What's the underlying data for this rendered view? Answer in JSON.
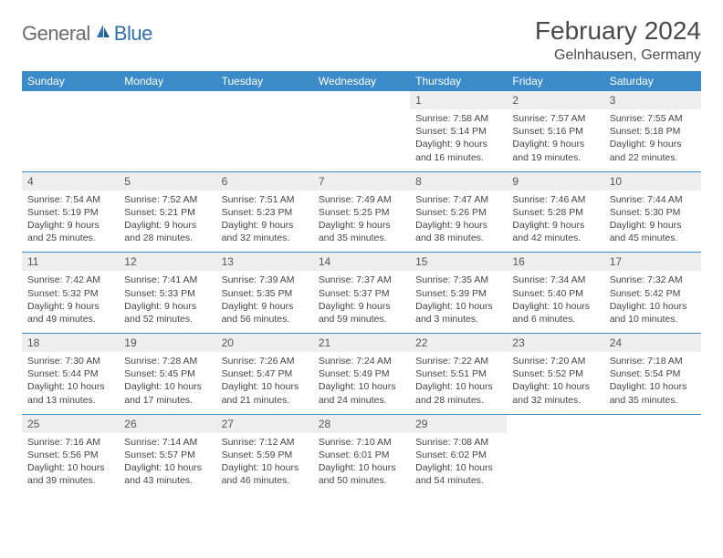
{
  "brand": {
    "general": "General",
    "blue": "Blue"
  },
  "title": "February 2024",
  "location": "Gelnhausen, Germany",
  "colors": {
    "header_bg": "#3b8bc8",
    "header_text": "#ffffff",
    "daynum_bg": "#eeeeee",
    "daynum_text": "#555555",
    "body_text": "#444444",
    "rule": "#3b8bc8",
    "logo_gray": "#6b6b6b",
    "logo_blue": "#2f6fad",
    "title_text": "#4a4a4a"
  },
  "weekdays": [
    "Sunday",
    "Monday",
    "Tuesday",
    "Wednesday",
    "Thursday",
    "Friday",
    "Saturday"
  ],
  "weeks": [
    [
      {
        "empty": true
      },
      {
        "empty": true
      },
      {
        "empty": true
      },
      {
        "empty": true
      },
      {
        "day": "1",
        "sunrise": "Sunrise: 7:58 AM",
        "sunset": "Sunset: 5:14 PM",
        "daylight1": "Daylight: 9 hours",
        "daylight2": "and 16 minutes."
      },
      {
        "day": "2",
        "sunrise": "Sunrise: 7:57 AM",
        "sunset": "Sunset: 5:16 PM",
        "daylight1": "Daylight: 9 hours",
        "daylight2": "and 19 minutes."
      },
      {
        "day": "3",
        "sunrise": "Sunrise: 7:55 AM",
        "sunset": "Sunset: 5:18 PM",
        "daylight1": "Daylight: 9 hours",
        "daylight2": "and 22 minutes."
      }
    ],
    [
      {
        "day": "4",
        "sunrise": "Sunrise: 7:54 AM",
        "sunset": "Sunset: 5:19 PM",
        "daylight1": "Daylight: 9 hours",
        "daylight2": "and 25 minutes."
      },
      {
        "day": "5",
        "sunrise": "Sunrise: 7:52 AM",
        "sunset": "Sunset: 5:21 PM",
        "daylight1": "Daylight: 9 hours",
        "daylight2": "and 28 minutes."
      },
      {
        "day": "6",
        "sunrise": "Sunrise: 7:51 AM",
        "sunset": "Sunset: 5:23 PM",
        "daylight1": "Daylight: 9 hours",
        "daylight2": "and 32 minutes."
      },
      {
        "day": "7",
        "sunrise": "Sunrise: 7:49 AM",
        "sunset": "Sunset: 5:25 PM",
        "daylight1": "Daylight: 9 hours",
        "daylight2": "and 35 minutes."
      },
      {
        "day": "8",
        "sunrise": "Sunrise: 7:47 AM",
        "sunset": "Sunset: 5:26 PM",
        "daylight1": "Daylight: 9 hours",
        "daylight2": "and 38 minutes."
      },
      {
        "day": "9",
        "sunrise": "Sunrise: 7:46 AM",
        "sunset": "Sunset: 5:28 PM",
        "daylight1": "Daylight: 9 hours",
        "daylight2": "and 42 minutes."
      },
      {
        "day": "10",
        "sunrise": "Sunrise: 7:44 AM",
        "sunset": "Sunset: 5:30 PM",
        "daylight1": "Daylight: 9 hours",
        "daylight2": "and 45 minutes."
      }
    ],
    [
      {
        "day": "11",
        "sunrise": "Sunrise: 7:42 AM",
        "sunset": "Sunset: 5:32 PM",
        "daylight1": "Daylight: 9 hours",
        "daylight2": "and 49 minutes."
      },
      {
        "day": "12",
        "sunrise": "Sunrise: 7:41 AM",
        "sunset": "Sunset: 5:33 PM",
        "daylight1": "Daylight: 9 hours",
        "daylight2": "and 52 minutes."
      },
      {
        "day": "13",
        "sunrise": "Sunrise: 7:39 AM",
        "sunset": "Sunset: 5:35 PM",
        "daylight1": "Daylight: 9 hours",
        "daylight2": "and 56 minutes."
      },
      {
        "day": "14",
        "sunrise": "Sunrise: 7:37 AM",
        "sunset": "Sunset: 5:37 PM",
        "daylight1": "Daylight: 9 hours",
        "daylight2": "and 59 minutes."
      },
      {
        "day": "15",
        "sunrise": "Sunrise: 7:35 AM",
        "sunset": "Sunset: 5:39 PM",
        "daylight1": "Daylight: 10 hours",
        "daylight2": "and 3 minutes."
      },
      {
        "day": "16",
        "sunrise": "Sunrise: 7:34 AM",
        "sunset": "Sunset: 5:40 PM",
        "daylight1": "Daylight: 10 hours",
        "daylight2": "and 6 minutes."
      },
      {
        "day": "17",
        "sunrise": "Sunrise: 7:32 AM",
        "sunset": "Sunset: 5:42 PM",
        "daylight1": "Daylight: 10 hours",
        "daylight2": "and 10 minutes."
      }
    ],
    [
      {
        "day": "18",
        "sunrise": "Sunrise: 7:30 AM",
        "sunset": "Sunset: 5:44 PM",
        "daylight1": "Daylight: 10 hours",
        "daylight2": "and 13 minutes."
      },
      {
        "day": "19",
        "sunrise": "Sunrise: 7:28 AM",
        "sunset": "Sunset: 5:45 PM",
        "daylight1": "Daylight: 10 hours",
        "daylight2": "and 17 minutes."
      },
      {
        "day": "20",
        "sunrise": "Sunrise: 7:26 AM",
        "sunset": "Sunset: 5:47 PM",
        "daylight1": "Daylight: 10 hours",
        "daylight2": "and 21 minutes."
      },
      {
        "day": "21",
        "sunrise": "Sunrise: 7:24 AM",
        "sunset": "Sunset: 5:49 PM",
        "daylight1": "Daylight: 10 hours",
        "daylight2": "and 24 minutes."
      },
      {
        "day": "22",
        "sunrise": "Sunrise: 7:22 AM",
        "sunset": "Sunset: 5:51 PM",
        "daylight1": "Daylight: 10 hours",
        "daylight2": "and 28 minutes."
      },
      {
        "day": "23",
        "sunrise": "Sunrise: 7:20 AM",
        "sunset": "Sunset: 5:52 PM",
        "daylight1": "Daylight: 10 hours",
        "daylight2": "and 32 minutes."
      },
      {
        "day": "24",
        "sunrise": "Sunrise: 7:18 AM",
        "sunset": "Sunset: 5:54 PM",
        "daylight1": "Daylight: 10 hours",
        "daylight2": "and 35 minutes."
      }
    ],
    [
      {
        "day": "25",
        "sunrise": "Sunrise: 7:16 AM",
        "sunset": "Sunset: 5:56 PM",
        "daylight1": "Daylight: 10 hours",
        "daylight2": "and 39 minutes."
      },
      {
        "day": "26",
        "sunrise": "Sunrise: 7:14 AM",
        "sunset": "Sunset: 5:57 PM",
        "daylight1": "Daylight: 10 hours",
        "daylight2": "and 43 minutes."
      },
      {
        "day": "27",
        "sunrise": "Sunrise: 7:12 AM",
        "sunset": "Sunset: 5:59 PM",
        "daylight1": "Daylight: 10 hours",
        "daylight2": "and 46 minutes."
      },
      {
        "day": "28",
        "sunrise": "Sunrise: 7:10 AM",
        "sunset": "Sunset: 6:01 PM",
        "daylight1": "Daylight: 10 hours",
        "daylight2": "and 50 minutes."
      },
      {
        "day": "29",
        "sunrise": "Sunrise: 7:08 AM",
        "sunset": "Sunset: 6:02 PM",
        "daylight1": "Daylight: 10 hours",
        "daylight2": "and 54 minutes."
      },
      {
        "empty": true
      },
      {
        "empty": true
      }
    ]
  ]
}
